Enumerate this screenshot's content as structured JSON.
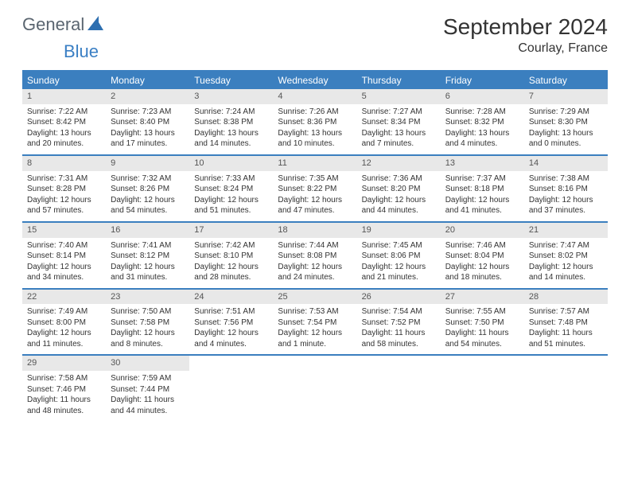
{
  "brand": {
    "part1": "General",
    "part2": "Blue"
  },
  "title": "September 2024",
  "location": "Courlay, France",
  "colors": {
    "accent": "#3b7fbf",
    "daynum_bg": "#e8e8e8"
  },
  "weekdays": [
    "Sunday",
    "Monday",
    "Tuesday",
    "Wednesday",
    "Thursday",
    "Friday",
    "Saturday"
  ],
  "sunrise_label": "Sunrise:",
  "sunset_label": "Sunset:",
  "daylight_label": "Daylight:",
  "weeks": [
    [
      {
        "n": "1",
        "sr": "7:22 AM",
        "ss": "8:42 PM",
        "dl": "13 hours and 20 minutes."
      },
      {
        "n": "2",
        "sr": "7:23 AM",
        "ss": "8:40 PM",
        "dl": "13 hours and 17 minutes."
      },
      {
        "n": "3",
        "sr": "7:24 AM",
        "ss": "8:38 PM",
        "dl": "13 hours and 14 minutes."
      },
      {
        "n": "4",
        "sr": "7:26 AM",
        "ss": "8:36 PM",
        "dl": "13 hours and 10 minutes."
      },
      {
        "n": "5",
        "sr": "7:27 AM",
        "ss": "8:34 PM",
        "dl": "13 hours and 7 minutes."
      },
      {
        "n": "6",
        "sr": "7:28 AM",
        "ss": "8:32 PM",
        "dl": "13 hours and 4 minutes."
      },
      {
        "n": "7",
        "sr": "7:29 AM",
        "ss": "8:30 PM",
        "dl": "13 hours and 0 minutes."
      }
    ],
    [
      {
        "n": "8",
        "sr": "7:31 AM",
        "ss": "8:28 PM",
        "dl": "12 hours and 57 minutes."
      },
      {
        "n": "9",
        "sr": "7:32 AM",
        "ss": "8:26 PM",
        "dl": "12 hours and 54 minutes."
      },
      {
        "n": "10",
        "sr": "7:33 AM",
        "ss": "8:24 PM",
        "dl": "12 hours and 51 minutes."
      },
      {
        "n": "11",
        "sr": "7:35 AM",
        "ss": "8:22 PM",
        "dl": "12 hours and 47 minutes."
      },
      {
        "n": "12",
        "sr": "7:36 AM",
        "ss": "8:20 PM",
        "dl": "12 hours and 44 minutes."
      },
      {
        "n": "13",
        "sr": "7:37 AM",
        "ss": "8:18 PM",
        "dl": "12 hours and 41 minutes."
      },
      {
        "n": "14",
        "sr": "7:38 AM",
        "ss": "8:16 PM",
        "dl": "12 hours and 37 minutes."
      }
    ],
    [
      {
        "n": "15",
        "sr": "7:40 AM",
        "ss": "8:14 PM",
        "dl": "12 hours and 34 minutes."
      },
      {
        "n": "16",
        "sr": "7:41 AM",
        "ss": "8:12 PM",
        "dl": "12 hours and 31 minutes."
      },
      {
        "n": "17",
        "sr": "7:42 AM",
        "ss": "8:10 PM",
        "dl": "12 hours and 28 minutes."
      },
      {
        "n": "18",
        "sr": "7:44 AM",
        "ss": "8:08 PM",
        "dl": "12 hours and 24 minutes."
      },
      {
        "n": "19",
        "sr": "7:45 AM",
        "ss": "8:06 PM",
        "dl": "12 hours and 21 minutes."
      },
      {
        "n": "20",
        "sr": "7:46 AM",
        "ss": "8:04 PM",
        "dl": "12 hours and 18 minutes."
      },
      {
        "n": "21",
        "sr": "7:47 AM",
        "ss": "8:02 PM",
        "dl": "12 hours and 14 minutes."
      }
    ],
    [
      {
        "n": "22",
        "sr": "7:49 AM",
        "ss": "8:00 PM",
        "dl": "12 hours and 11 minutes."
      },
      {
        "n": "23",
        "sr": "7:50 AM",
        "ss": "7:58 PM",
        "dl": "12 hours and 8 minutes."
      },
      {
        "n": "24",
        "sr": "7:51 AM",
        "ss": "7:56 PM",
        "dl": "12 hours and 4 minutes."
      },
      {
        "n": "25",
        "sr": "7:53 AM",
        "ss": "7:54 PM",
        "dl": "12 hours and 1 minute."
      },
      {
        "n": "26",
        "sr": "7:54 AM",
        "ss": "7:52 PM",
        "dl": "11 hours and 58 minutes."
      },
      {
        "n": "27",
        "sr": "7:55 AM",
        "ss": "7:50 PM",
        "dl": "11 hours and 54 minutes."
      },
      {
        "n": "28",
        "sr": "7:57 AM",
        "ss": "7:48 PM",
        "dl": "11 hours and 51 minutes."
      }
    ],
    [
      {
        "n": "29",
        "sr": "7:58 AM",
        "ss": "7:46 PM",
        "dl": "11 hours and 48 minutes."
      },
      {
        "n": "30",
        "sr": "7:59 AM",
        "ss": "7:44 PM",
        "dl": "11 hours and 44 minutes."
      },
      {
        "empty": true
      },
      {
        "empty": true
      },
      {
        "empty": true
      },
      {
        "empty": true
      },
      {
        "empty": true
      }
    ]
  ]
}
